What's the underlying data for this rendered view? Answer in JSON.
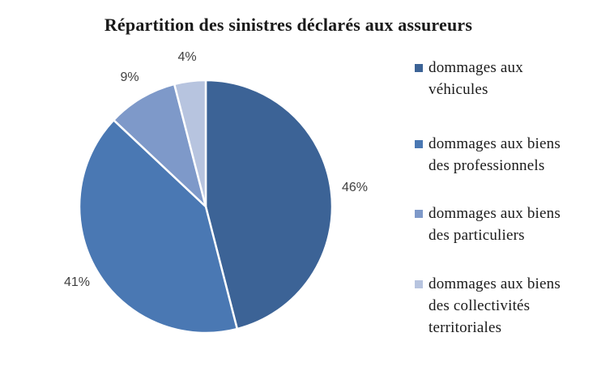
{
  "title": "Répartition des sinistres déclarés aux assureurs",
  "chart_data": {
    "type": "pie",
    "title": "Répartition des sinistres déclarés aux assureurs",
    "categories": [
      "dommages aux véhicules",
      "dommages aux biens des professionnels",
      "dommages aux biens des particuliers",
      "dommages aux biens des collectivités territoriales"
    ],
    "values": [
      46,
      41,
      9,
      4
    ],
    "labels": [
      "46%",
      "41%",
      "9%",
      "4%"
    ],
    "colors": [
      "#3C6396",
      "#4A78B3",
      "#7E99C9",
      "#B7C4DF"
    ],
    "start_angle_deg": 0,
    "direction": "clockwise",
    "label_position": "outside",
    "label_color": "#404040",
    "legend_position": "right",
    "slice_border_color": "#FFFFFF"
  },
  "legend": {
    "items": [
      {
        "label": "dommages aux\nvéhicules",
        "color": "#3C6396"
      },
      {
        "label": "dommages aux biens\ndes professionnels",
        "color": "#4A78B3"
      },
      {
        "label": "dommages aux biens\ndes particuliers",
        "color": "#7E99C9"
      },
      {
        "label": "dommages aux biens\ndes collectivités\nterritoriales",
        "color": "#B7C4DF"
      }
    ]
  }
}
